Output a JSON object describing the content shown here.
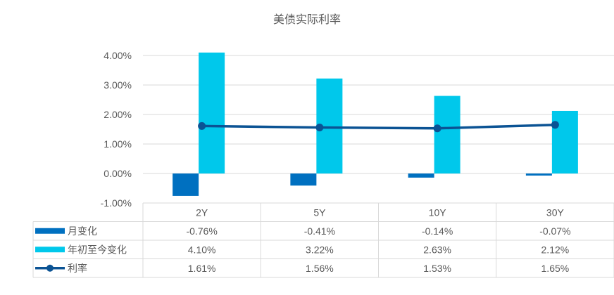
{
  "chart_data": {
    "type": "bar",
    "title": "美债实际利率",
    "categories": [
      "2Y",
      "5Y",
      "10Y",
      "30Y"
    ],
    "yticks": [
      "4.00%",
      "3.00%",
      "2.00%",
      "1.00%",
      "0.00%",
      "-1.00%"
    ],
    "ylim": [
      -1,
      4.6
    ],
    "grid": true,
    "legend": "data-table",
    "series": [
      {
        "name": "月变化",
        "type": "bar",
        "color": "#0070C0",
        "values": [
          -0.76,
          -0.41,
          -0.14,
          -0.07
        ],
        "labels": [
          "-0.76%",
          "-0.41%",
          "-0.14%",
          "-0.07%"
        ]
      },
      {
        "name": "年初至今变化",
        "type": "bar",
        "color": "#00C8EB",
        "values": [
          4.1,
          3.22,
          2.63,
          2.12
        ],
        "labels": [
          "4.10%",
          "3.22%",
          "2.63%",
          "2.12%"
        ]
      },
      {
        "name": "利率",
        "type": "line",
        "color": "#0B5394",
        "values": [
          1.61,
          1.56,
          1.53,
          1.65
        ],
        "labels": [
          "1.61%",
          "1.56%",
          "1.53%",
          "1.65%"
        ]
      }
    ]
  }
}
